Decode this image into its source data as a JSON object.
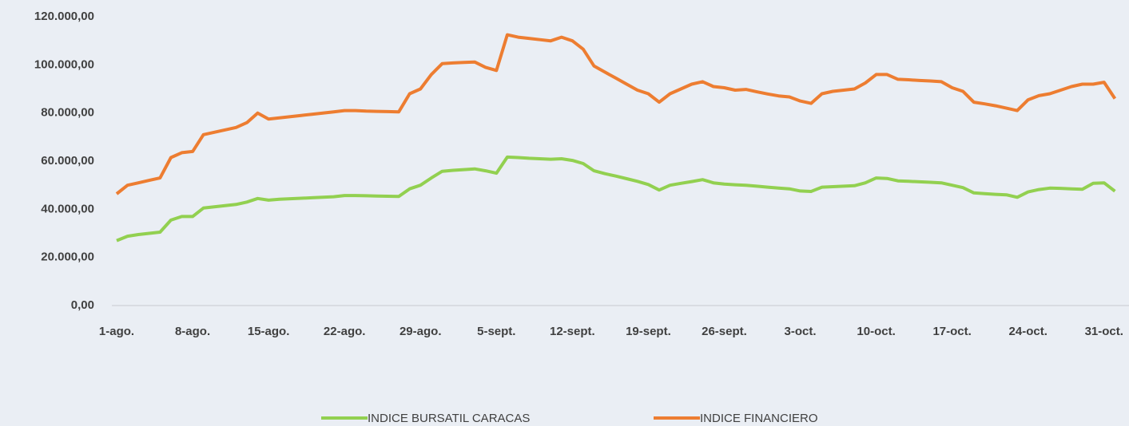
{
  "chart_data": {
    "type": "line",
    "categories": [
      "1-ago.",
      null,
      null,
      null,
      null,
      null,
      null,
      "8-ago.",
      null,
      null,
      null,
      null,
      null,
      null,
      "15-ago.",
      null,
      null,
      null,
      null,
      null,
      null,
      "22-ago.",
      null,
      null,
      null,
      null,
      null,
      null,
      "29-ago.",
      null,
      null,
      null,
      null,
      null,
      null,
      "5-sept.",
      null,
      null,
      null,
      null,
      null,
      null,
      "12-sept.",
      null,
      null,
      null,
      null,
      null,
      null,
      "19-sept.",
      null,
      null,
      null,
      null,
      null,
      null,
      "26-sept.",
      null,
      null,
      null,
      null,
      null,
      null,
      "3-oct.",
      null,
      null,
      null,
      null,
      null,
      null,
      "10-oct.",
      null,
      null,
      null,
      null,
      null,
      null,
      "17-oct.",
      null,
      null,
      null,
      null,
      null,
      null,
      "24-oct.",
      null,
      null,
      null,
      null,
      null,
      null,
      "31-oct.",
      null
    ],
    "series": [
      {
        "name": "INDICE BURSATIL CARACAS",
        "color": "#92d050",
        "values": [
          27000,
          28800,
          29500,
          30000,
          30500,
          35500,
          37000,
          37000,
          40500,
          41000,
          41500,
          42000,
          43000,
          44500,
          43800,
          44200,
          44400,
          44600,
          44800,
          45000,
          45200,
          45700,
          45700,
          45600,
          45500,
          45400,
          45300,
          48500,
          50000,
          53000,
          55800,
          56200,
          56500,
          56800,
          56000,
          55000,
          61700,
          61500,
          61200,
          61000,
          60800,
          61000,
          60300,
          59000,
          56000,
          54800,
          53800,
          52700,
          51600,
          50300,
          48000,
          50000,
          50800,
          51500,
          52300,
          51000,
          50500,
          50200,
          50000,
          49600,
          49200,
          48800,
          48500,
          47600,
          47400,
          49200,
          49400,
          49600,
          49800,
          51000,
          53000,
          52800,
          51800,
          51600,
          51400,
          51200,
          51000,
          50000,
          49000,
          46800,
          46500,
          46200,
          46000,
          45000,
          47200,
          48200,
          48800,
          48700,
          48500,
          48300,
          50800,
          51000,
          47500
        ]
      },
      {
        "name": "INDICE FINANCIERO",
        "color": "#ed7d31",
        "values": [
          46400,
          50000,
          51000,
          52000,
          53000,
          61500,
          63500,
          64000,
          71000,
          72000,
          73000,
          74000,
          76000,
          80000,
          77500,
          78000,
          78500,
          79000,
          79500,
          80000,
          80500,
          81000,
          81000,
          80800,
          80700,
          80600,
          80500,
          88000,
          90000,
          96000,
          100500,
          100800,
          101000,
          101200,
          99000,
          97700,
          112500,
          111500,
          111000,
          110500,
          110000,
          111500,
          110000,
          106500,
          99500,
          97000,
          94500,
          92000,
          89500,
          88000,
          84500,
          88000,
          90000,
          92000,
          93000,
          91000,
          90500,
          89500,
          89800,
          88800,
          87900,
          87100,
          86700,
          85000,
          84000,
          88000,
          89000,
          89500,
          90000,
          92500,
          96000,
          96000,
          94000,
          93800,
          93500,
          93300,
          93000,
          90500,
          89000,
          84500,
          83800,
          83000,
          82000,
          81000,
          85500,
          87200,
          88000,
          89500,
          91000,
          92000,
          92000,
          92800,
          86000
        ]
      }
    ],
    "ylim": [
      0,
      120000
    ],
    "yticks": [
      {
        "value": 0,
        "label": "0,00"
      },
      {
        "value": 20000,
        "label": "20.000,00"
      },
      {
        "value": 40000,
        "label": "40.000,00"
      },
      {
        "value": 60000,
        "label": "60.000,00"
      },
      {
        "value": 80000,
        "label": "80.000,00"
      },
      {
        "value": 100000,
        "label": "100.000,00"
      },
      {
        "value": 120000,
        "label": "120.000,00"
      }
    ],
    "grid": false,
    "legend": "bottom"
  }
}
